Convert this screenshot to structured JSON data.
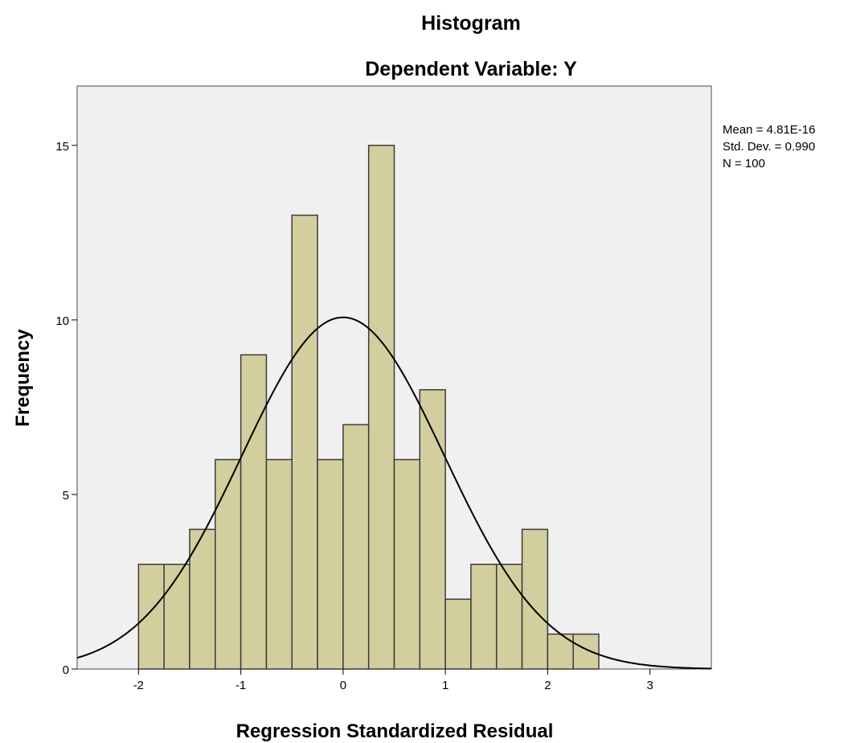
{
  "chart_data": {
    "type": "bar",
    "title": "Histogram",
    "subtitle": "Dependent Variable: Y",
    "xlabel": "Regression Standardized Residual",
    "ylabel": "Frequency",
    "xlim": [
      -2.6,
      3.6
    ],
    "ylim": [
      0,
      16.7
    ],
    "x_ticks": [
      -2,
      -1,
      0,
      1,
      2,
      3
    ],
    "x_tick_labels": [
      "-2",
      "-1",
      "0",
      "1",
      "2",
      "3"
    ],
    "y_ticks": [
      0,
      5,
      10,
      15
    ],
    "y_tick_labels": [
      "0",
      "5",
      "10",
      "15"
    ],
    "bin_width": 0.25,
    "bins": [
      {
        "x0": -2.0,
        "x1": -1.75,
        "value": 3
      },
      {
        "x0": -1.75,
        "x1": -1.5,
        "value": 3
      },
      {
        "x0": -1.5,
        "x1": -1.25,
        "value": 4
      },
      {
        "x0": -1.25,
        "x1": -1.0,
        "value": 6
      },
      {
        "x0": -1.0,
        "x1": -0.75,
        "value": 9
      },
      {
        "x0": -0.75,
        "x1": -0.5,
        "value": 6
      },
      {
        "x0": -0.5,
        "x1": -0.25,
        "value": 13
      },
      {
        "x0": -0.25,
        "x1": 0.0,
        "value": 6
      },
      {
        "x0": 0.0,
        "x1": 0.25,
        "value": 7
      },
      {
        "x0": 0.25,
        "x1": 0.5,
        "value": 15
      },
      {
        "x0": 0.5,
        "x1": 0.75,
        "value": 6
      },
      {
        "x0": 0.75,
        "x1": 1.0,
        "value": 8
      },
      {
        "x0": 1.0,
        "x1": 1.25,
        "value": 2
      },
      {
        "x0": 1.25,
        "x1": 1.5,
        "value": 3
      },
      {
        "x0": 1.5,
        "x1": 1.75,
        "value": 3
      },
      {
        "x0": 1.75,
        "x1": 2.0,
        "value": 4
      },
      {
        "x0": 2.0,
        "x1": 2.25,
        "value": 1
      },
      {
        "x0": 2.25,
        "x1": 2.5,
        "value": 1
      }
    ],
    "normal_curve": {
      "mean": 0.0,
      "std_dev": 0.99,
      "n": 100
    },
    "stats_lines": [
      "Mean = 4.81E-16",
      "Std. Dev. = 0.990",
      "N = 100"
    ],
    "stats_placement": "top-right",
    "grid": false,
    "colors": {
      "bar_fill": "#d3ce9e",
      "bar_stroke": "#3c3c3c",
      "plot_bg": "#f0f0f0",
      "curve": "#000000"
    }
  }
}
